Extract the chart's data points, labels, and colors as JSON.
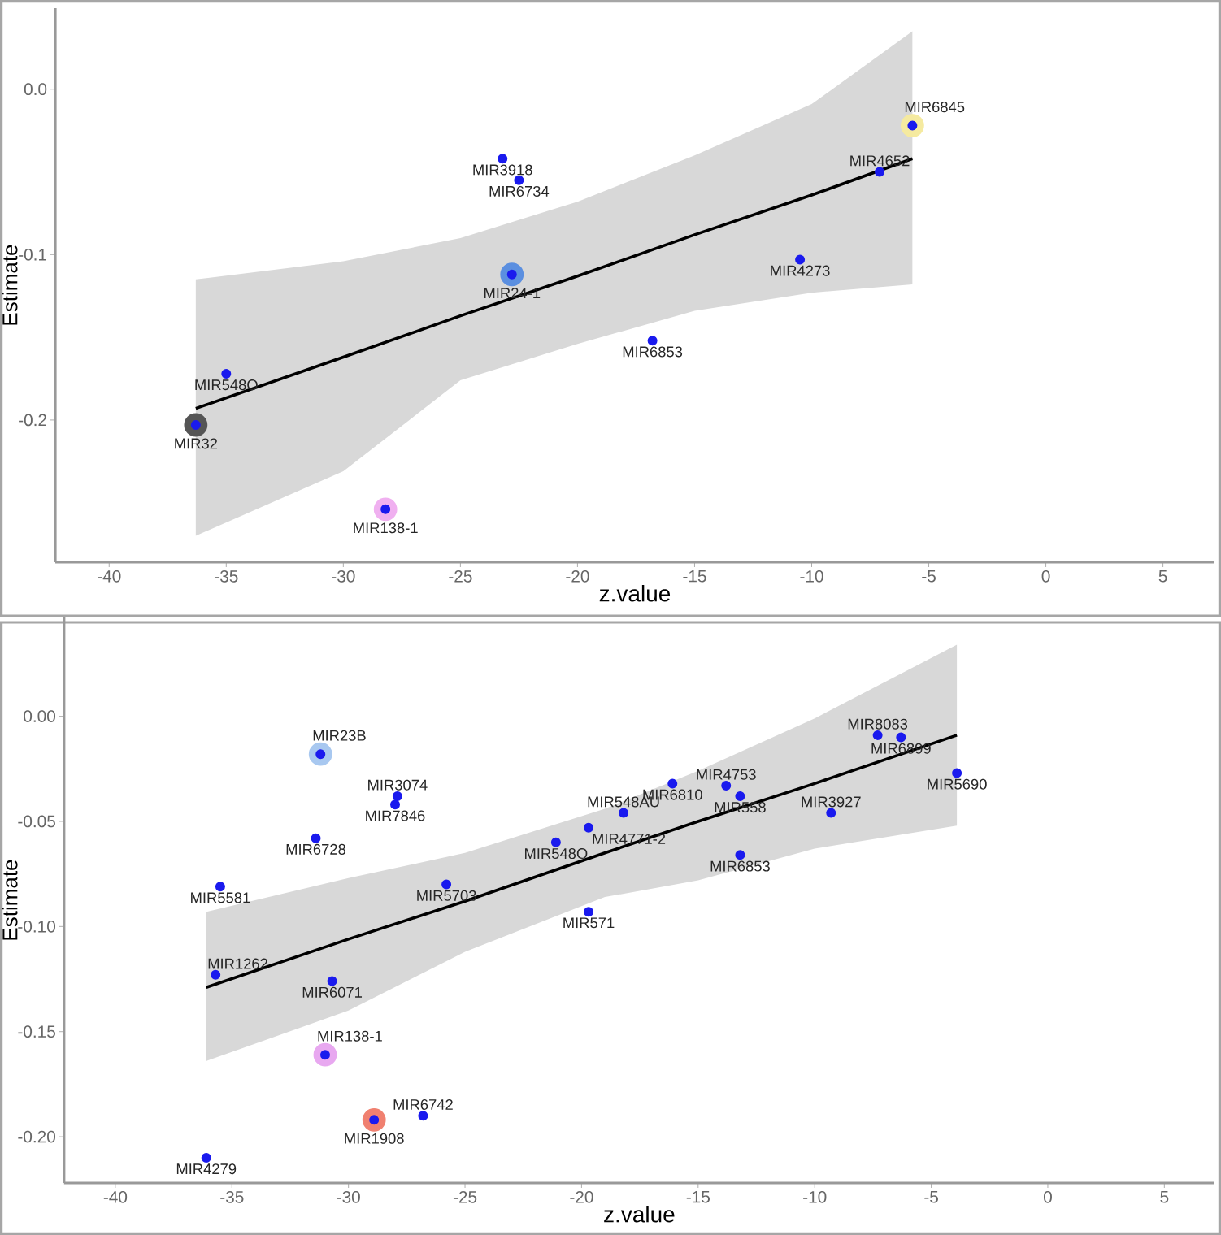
{
  "chart_data": [
    {
      "type": "scatter",
      "xlabel": "z.value",
      "ylabel": "Estimate",
      "xlim": [
        -42.3,
        7.2
      ],
      "ylim": [
        -0.286,
        0.049
      ],
      "xticks": [
        -40,
        -35,
        -30,
        -25,
        -20,
        -15,
        -10,
        -5,
        0,
        5
      ],
      "yticks": [
        {
          "value": -0.2,
          "label": "-0.2"
        },
        {
          "value": -0.1,
          "label": "-0.1"
        },
        {
          "value": 0,
          "label": "0.0"
        }
      ],
      "grid": false,
      "series": [
        {
          "type": "line",
          "marker": "none",
          "color": "#000000",
          "x": [
            -36.3,
            -30,
            -25,
            -20,
            -15,
            -10,
            -5.7
          ],
          "values": [
            -0.193,
            -0.162,
            -0.137,
            -0.113,
            -0.088,
            -0.064,
            -0.042
          ],
          "lower": [
            -0.27,
            -0.231,
            -0.176,
            -0.154,
            -0.134,
            -0.123,
            -0.118
          ],
          "upper": [
            -0.115,
            -0.104,
            -0.09,
            -0.068,
            -0.04,
            -0.009,
            0.035
          ]
        },
        {
          "type": "scatter",
          "colors": [
            "#5b8fe0",
            "#555555",
            "#f0b0f0",
            "#f5eaa0"
          ],
          "x": [
            -22.8,
            -36.3,
            -28.2,
            -5.7
          ],
          "values": [
            -0.112,
            -0.203,
            -0.254,
            -0.022
          ]
        },
        {
          "type": "scatter",
          "color": "#1a1aee",
          "x": [
            -23.2,
            -22.5,
            -22.8,
            -35.0,
            -36.3,
            -28.2,
            -5.7,
            -7.1,
            -10.5,
            -16.8
          ],
          "values": [
            -0.042,
            -0.055,
            -0.112,
            -0.172,
            -0.203,
            -0.254,
            -0.022,
            -0.05,
            -0.103,
            -0.152
          ]
        }
      ],
      "annotations": [
        {
          "text": "MIR3918",
          "x": -23.2,
          "y": -0.042
        },
        {
          "text": "MIR6734",
          "x": -22.5,
          "y": -0.055
        },
        {
          "text": "MIR24-1",
          "x": -22.8,
          "y": -0.112
        },
        {
          "text": "MIR548O",
          "x": -35.0,
          "y": -0.172
        },
        {
          "text": "MIR32",
          "x": -36.3,
          "y": -0.203
        },
        {
          "text": "MIR138-1",
          "x": -28.2,
          "y": -0.254
        },
        {
          "text": "MIR6845",
          "x": -5.7,
          "y": -0.022
        },
        {
          "text": "MIR4652",
          "x": -7.1,
          "y": -0.05
        },
        {
          "text": "MIR4273",
          "x": -10.5,
          "y": -0.103
        },
        {
          "text": "MIR6853",
          "x": -16.8,
          "y": -0.152
        }
      ]
    },
    {
      "type": "scatter",
      "xlabel": "z.value",
      "ylabel": "Estimate",
      "xlim": [
        -42.2,
        7.15
      ],
      "ylim": [
        -0.222,
        0.047
      ],
      "xticks": [
        -40,
        -35,
        -30,
        -25,
        -20,
        -15,
        -10,
        -5,
        0,
        5
      ],
      "yticks": [
        {
          "value": -0.2,
          "label": "-0.20"
        },
        {
          "value": -0.15,
          "label": "-0.15"
        },
        {
          "value": -0.1,
          "label": "-0.10"
        },
        {
          "value": -0.05,
          "label": "-0.05"
        },
        {
          "value": 0,
          "label": "0.00"
        }
      ],
      "grid": false,
      "series": [
        {
          "type": "line",
          "marker": "none",
          "color": "#000000",
          "x": [
            -36.1,
            -30,
            -25,
            -19,
            -15,
            -10,
            -3.9
          ],
          "values": [
            -0.129,
            -0.106,
            -0.088,
            -0.065,
            -0.05,
            -0.032,
            -0.009
          ],
          "lower": [
            -0.164,
            -0.14,
            -0.112,
            -0.086,
            -0.078,
            -0.063,
            -0.052
          ],
          "upper": [
            -0.093,
            -0.077,
            -0.065,
            -0.044,
            -0.026,
            -0.001,
            0.034
          ]
        },
        {
          "type": "scatter",
          "colors": [
            "#a8c8f0",
            "#e8a8f0",
            "#f08070"
          ],
          "x": [
            -31.2,
            -31.0,
            -28.9
          ],
          "values": [
            -0.018,
            -0.161,
            -0.192
          ]
        },
        {
          "type": "scatter",
          "color": "#1a1aee",
          "x": [
            -31.2,
            -27.9,
            -28.0,
            -31.4,
            -35.5,
            -25.8,
            -19.7,
            -21.1,
            -19.7,
            -35.7,
            -30.7,
            -31.0,
            -28.9,
            -26.8,
            -36.1,
            -18.2,
            -16.1,
            -13.8,
            -13.2,
            -13.2,
            -9.3,
            -7.3,
            -6.3,
            -3.9
          ],
          "values": [
            -0.018,
            -0.038,
            -0.042,
            -0.058,
            -0.081,
            -0.08,
            -0.053,
            -0.06,
            -0.093,
            -0.123,
            -0.126,
            -0.161,
            -0.192,
            -0.19,
            -0.21,
            -0.046,
            -0.032,
            -0.033,
            -0.038,
            -0.066,
            -0.046,
            -0.009,
            -0.01,
            -0.027
          ]
        }
      ],
      "annotations": [
        {
          "text": "MIR23B",
          "x": -31.2,
          "y": -0.018
        },
        {
          "text": "MIR3074",
          "x": -27.9,
          "y": -0.038
        },
        {
          "text": "MIR7846",
          "x": -28.0,
          "y": -0.042
        },
        {
          "text": "MIR6728",
          "x": -31.4,
          "y": -0.058
        },
        {
          "text": "MIR5581",
          "x": -35.5,
          "y": -0.081
        },
        {
          "text": "MIR5703",
          "x": -25.8,
          "y": -0.08
        },
        {
          "text": "MIR4771-2",
          "x": -19.7,
          "y": -0.053
        },
        {
          "text": "MIR548O",
          "x": -21.1,
          "y": -0.06
        },
        {
          "text": "MIR571",
          "x": -19.7,
          "y": -0.093
        },
        {
          "text": "MIR1262",
          "x": -35.7,
          "y": -0.123
        },
        {
          "text": "MIR6071",
          "x": -30.7,
          "y": -0.126
        },
        {
          "text": "MIR138-1",
          "x": -31.0,
          "y": -0.161
        },
        {
          "text": "MIR1908",
          "x": -28.9,
          "y": -0.192
        },
        {
          "text": "MIR6742",
          "x": -26.8,
          "y": -0.19
        },
        {
          "text": "MIR4279",
          "x": -36.1,
          "y": -0.21
        },
        {
          "text": "MIR548AU",
          "x": -18.2,
          "y": -0.046
        },
        {
          "text": "MIR6810",
          "x": -16.1,
          "y": -0.032
        },
        {
          "text": "MIR4753",
          "x": -13.8,
          "y": -0.033
        },
        {
          "text": "MIR558",
          "x": -13.2,
          "y": -0.038
        },
        {
          "text": "MIR6853",
          "x": -13.2,
          "y": -0.066
        },
        {
          "text": "MIR3927",
          "x": -9.3,
          "y": -0.046
        },
        {
          "text": "MIR8083",
          "x": -7.3,
          "y": -0.009
        },
        {
          "text": "MIR6899",
          "x": -6.3,
          "y": -0.01
        },
        {
          "text": "MIR5690",
          "x": -3.9,
          "y": -0.027
        }
      ]
    }
  ]
}
